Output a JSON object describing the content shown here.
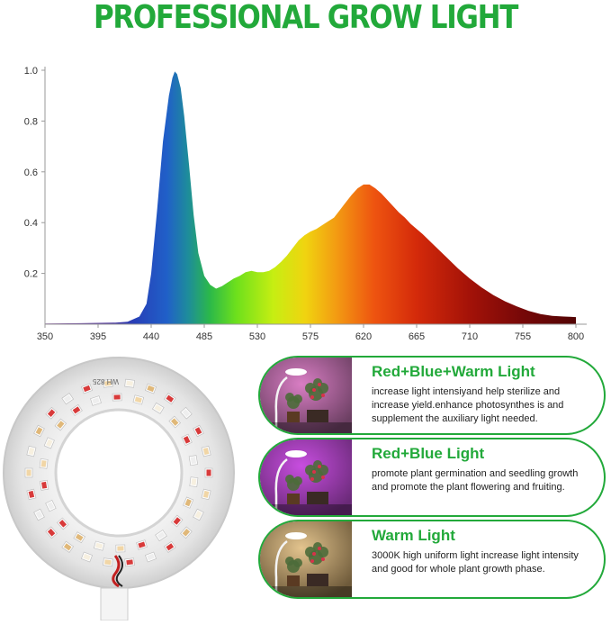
{
  "title": "PROFESSIONAL GROW LIGHT",
  "chart_data": {
    "type": "area",
    "x_ticks": [
      "350",
      "395",
      "440",
      "485",
      "530",
      "575",
      "620",
      "665",
      "710",
      "755",
      "800"
    ],
    "y_ticks": [
      "0.2",
      "0.4",
      "0.6",
      "0.8",
      "1.0"
    ],
    "xlim": [
      350,
      800
    ],
    "ylim": [
      0,
      1.0
    ],
    "grid": false,
    "series": [
      {
        "x": [
          350,
          380,
          410,
          420,
          430,
          436,
          440,
          445,
          450,
          455,
          458,
          460,
          462,
          465,
          468,
          472,
          476,
          480,
          485,
          490,
          495,
          500,
          505,
          510,
          515,
          520,
          525,
          530,
          535,
          540,
          545,
          550,
          555,
          560,
          565,
          570,
          575,
          580,
          585,
          590,
          595,
          600,
          605,
          610,
          615,
          620,
          625,
          630,
          635,
          640,
          645,
          650,
          655,
          660,
          665,
          670,
          680,
          690,
          700,
          710,
          720,
          730,
          740,
          750,
          760,
          770,
          780,
          790,
          800
        ],
        "y": [
          0.003,
          0.004,
          0.006,
          0.01,
          0.03,
          0.08,
          0.2,
          0.45,
          0.72,
          0.9,
          0.97,
          0.995,
          0.985,
          0.93,
          0.82,
          0.63,
          0.43,
          0.28,
          0.19,
          0.155,
          0.14,
          0.15,
          0.165,
          0.18,
          0.19,
          0.205,
          0.21,
          0.205,
          0.205,
          0.21,
          0.225,
          0.245,
          0.27,
          0.3,
          0.33,
          0.35,
          0.365,
          0.375,
          0.39,
          0.405,
          0.42,
          0.45,
          0.48,
          0.51,
          0.535,
          0.55,
          0.55,
          0.535,
          0.515,
          0.49,
          0.465,
          0.44,
          0.42,
          0.395,
          0.375,
          0.355,
          0.31,
          0.265,
          0.22,
          0.18,
          0.145,
          0.115,
          0.09,
          0.07,
          0.052,
          0.04,
          0.033,
          0.03,
          0.028
        ]
      }
    ]
  },
  "cards": [
    {
      "heading": "Red+Blue+Warm Light",
      "desc": "increase light intensiyand help sterilize and increase yield.enhance photosynthes is and supplement the auxiliary light needed.",
      "glow": "#d97ec4",
      "base": "#6b3f62"
    },
    {
      "heading": "Red+Blue Light",
      "desc": "promote plant germination and seedling growth and promote the plant flowering and fruiting.",
      "glow": "#c84ee0",
      "base": "#6a2a78"
    },
    {
      "heading": "Warm Light",
      "desc": "3000K high uniform light increase light intensity and good for whole plant growth phase.",
      "glow": "#e3c48e",
      "base": "#6e5a3a"
    }
  ],
  "ring_label": "WH 825"
}
